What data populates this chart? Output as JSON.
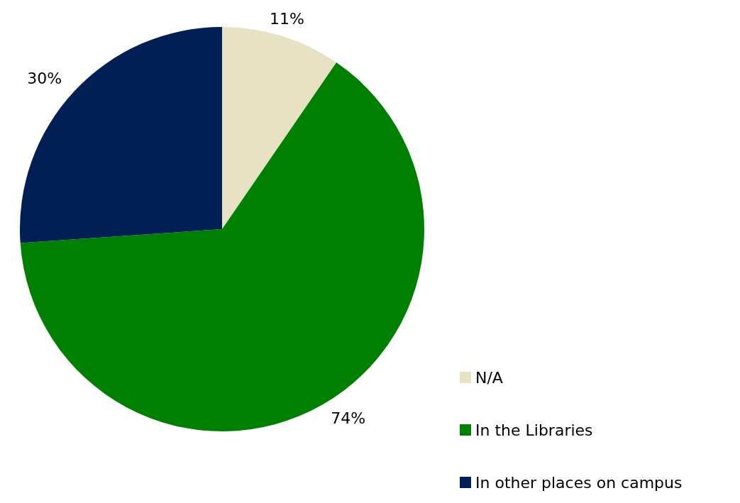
{
  "chart_data": {
    "type": "pie",
    "categories": [
      "N/A",
      "In the Libraries",
      "In other places on campus"
    ],
    "values": [
      11,
      74,
      30
    ],
    "colors": [
      "#e6e2c3",
      "#008000",
      "#001f54"
    ],
    "data_labels": true,
    "value_labels": [
      "11%",
      "74%",
      "30%"
    ],
    "legend": "bottom right"
  }
}
